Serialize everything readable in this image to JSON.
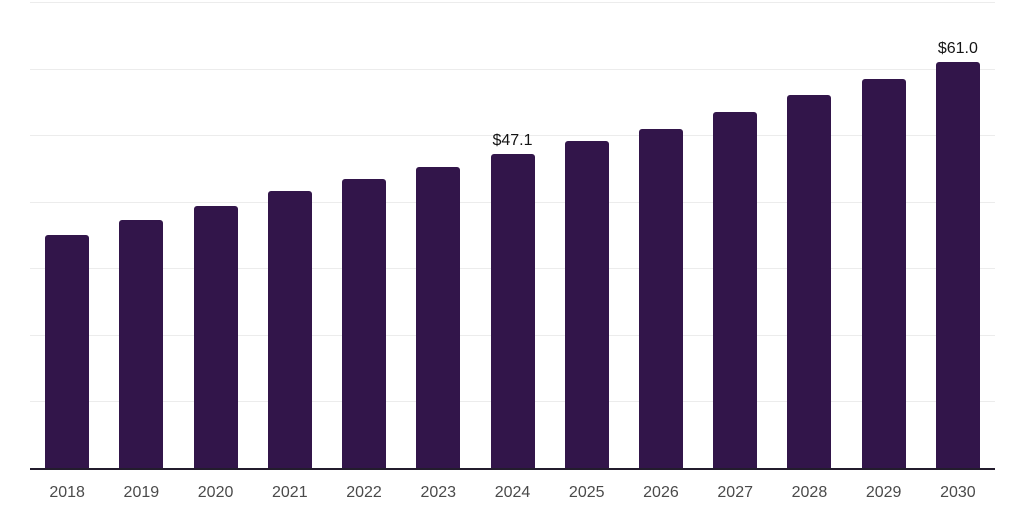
{
  "chart_data": {
    "type": "bar",
    "title": "",
    "xlabel": "",
    "ylabel": "",
    "categories": [
      "2018",
      "2019",
      "2020",
      "2021",
      "2022",
      "2023",
      "2024",
      "2025",
      "2026",
      "2027",
      "2028",
      "2029",
      "2030"
    ],
    "values": [
      35.0,
      37.3,
      39.4,
      41.6,
      43.4,
      45.2,
      47.1,
      49.1,
      51.0,
      53.5,
      56.0,
      58.5,
      61.0
    ],
    "annotations": [
      {
        "category": "2024",
        "label": "$47.1"
      },
      {
        "category": "2030",
        "label": "$61.0"
      }
    ],
    "ylim": [
      0,
      70
    ],
    "gridline_step": 10,
    "grid": "horizontal",
    "legend": "none",
    "y_axis_labels_visible": false,
    "colors": {
      "bar": "#32154a",
      "gridline": "#ececec",
      "axis_line": "#231c2d",
      "x_label": "#4a4a4a",
      "annotation": "#141414",
      "background": "#ffffff"
    }
  }
}
